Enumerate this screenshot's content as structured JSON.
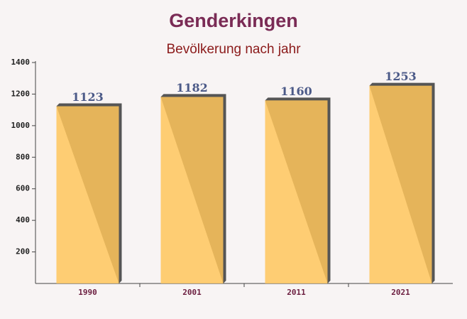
{
  "chart_data": {
    "type": "bar",
    "title": "Genderkingen",
    "subtitle": "Bevölkerung nach jahr",
    "categories": [
      "1990",
      "2001",
      "2011",
      "2021"
    ],
    "values": [
      1123,
      1182,
      1160,
      1253
    ],
    "color": "#ffc55c",
    "ylim": [
      0,
      1400
    ],
    "yticks": [
      200,
      400,
      600,
      800,
      1000,
      1200,
      1400
    ]
  }
}
